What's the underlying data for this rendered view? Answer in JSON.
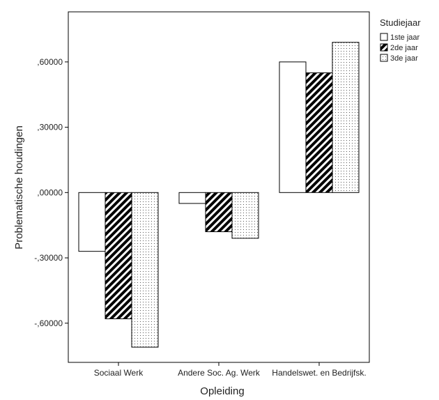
{
  "chart_data": {
    "type": "bar",
    "xlabel": "Opleiding",
    "ylabel": "Problematische houdingen",
    "categories": [
      "Sociaal Werk",
      "Andere Soc. Ag. Werk",
      "Handelswet. en Bedrijfsk."
    ],
    "ylim": [
      -0.78,
      0.83
    ],
    "yticks": [
      -0.6,
      -0.3,
      0.0,
      0.3,
      0.6
    ],
    "ytick_labels": [
      "-,60000",
      "-,30000",
      ",00000",
      ",30000",
      ",60000"
    ],
    "legend": {
      "title": "Studiejaar",
      "position": "right"
    },
    "series": [
      {
        "name": "1ste jaar",
        "pattern": "empty",
        "values": [
          -0.27,
          -0.05,
          0.6
        ]
      },
      {
        "name": "2de jaar",
        "pattern": "diagonal-hatch",
        "values": [
          -0.58,
          -0.18,
          0.55
        ]
      },
      {
        "name": "3de jaar",
        "pattern": "dotted",
        "values": [
          -0.71,
          -0.21,
          0.69
        ]
      }
    ],
    "grid": false
  }
}
